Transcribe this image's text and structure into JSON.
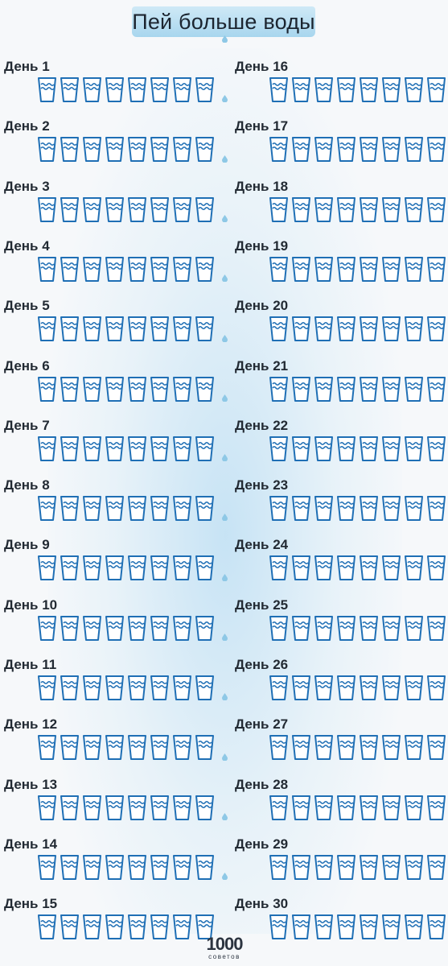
{
  "title": "Пей больше воды",
  "colors": {
    "cup": "#1f6fb5",
    "banner": "#b6dcf0",
    "drop": "#8ec8e6"
  },
  "glasses_per_day": 8,
  "days": [
    "День 1",
    "День 2",
    "День 3",
    "День 4",
    "День 5",
    "День 6",
    "День 7",
    "День 8",
    "День 9",
    "День 10",
    "День 11",
    "День 12",
    "День 13",
    "День 14",
    "День 15",
    "День 16",
    "День 17",
    "День 18",
    "День 19",
    "День 20",
    "День 21",
    "День 22",
    "День 23",
    "День 24",
    "День 25",
    "День 26",
    "День 27",
    "День 28",
    "День 29",
    "День 30"
  ],
  "glass_icon": "water-glass-icon",
  "brand": {
    "logo": "1000",
    "subtitle": "советов"
  }
}
